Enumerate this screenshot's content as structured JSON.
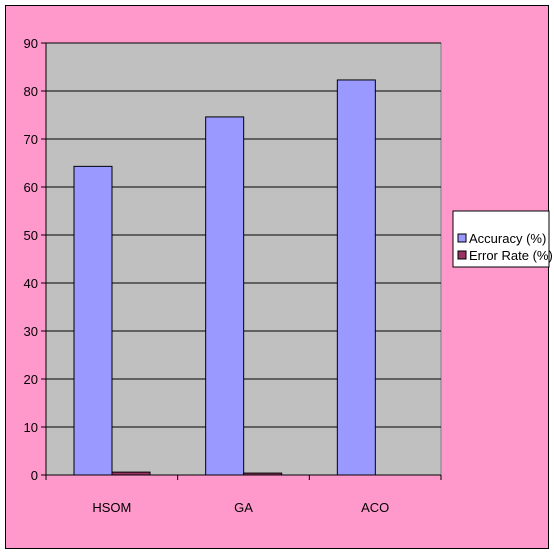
{
  "chart_data": {
    "type": "bar",
    "categories": [
      "HSOM",
      "GA",
      "ACO"
    ],
    "series": [
      {
        "name": "Accuracy (%)",
        "values": [
          64.3,
          74.6,
          82.3
        ],
        "color": "#9999ff"
      },
      {
        "name": "Error Rate (%)",
        "values": [
          0.6,
          0.4,
          0.0
        ],
        "color": "#993366"
      }
    ],
    "ylim": [
      0,
      90
    ],
    "yticks": [
      0,
      10,
      20,
      30,
      40,
      50,
      60,
      70,
      80,
      90
    ],
    "ytick_labels": [
      "0",
      "10",
      "20",
      "30",
      "40",
      "50",
      "60",
      "70",
      "80",
      "90"
    ],
    "grid": true,
    "legend_position": "right",
    "title": "",
    "xlabel": "",
    "ylabel": ""
  },
  "colors": {
    "chart_area": "#ff99cc",
    "plot_area": "#c0c0c0",
    "gridline": "#000000"
  }
}
